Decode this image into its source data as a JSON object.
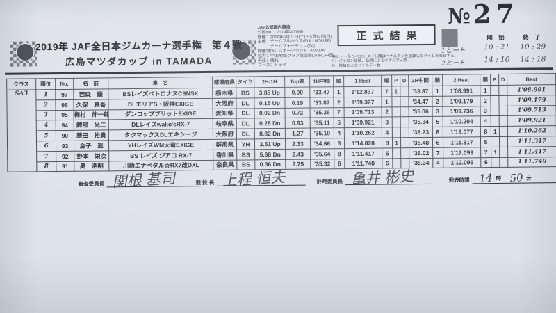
{
  "doc_no": {
    "prefix": "№",
    "number": "27"
  },
  "header": {
    "title_line1": "2019年 JAF全日本ジムカーナ選手権　第４戦",
    "title_line2": "広島マツダカップ in TAMADA"
  },
  "sanction_lines": [
    "JAF公認国内競技",
    "公認No.：2019年4009号",
    "開催：2019年5月11日(土)・5月12日(日)",
    "主催：チームフルハウス(FULLHOUSE)",
    "　　　チームフォーチュン(T4)",
    "開催場所：スポーツランドTAMADA",
    "協力：中国地域クラブ協議会(JMRC中国)",
    "天候：晴れ",
    "コース：ドライ"
  ],
  "result_stamp": "正式結果",
  "notes": [
    "各ヒート及びベストタイム欄はペナルティを加算したタイムを表記する。",
    "P：パイロン接触、転倒によるペナルティ数",
    "D：脱輪によるペナルティ数"
  ],
  "schedule": {
    "start_label": "開 始",
    "end_label": "終 了",
    "rows": [
      {
        "label": "1ヒート",
        "start": "10 : 21",
        "end": "10 : 29"
      },
      {
        "label": "2ヒート",
        "start": "14 : 10",
        "end": "14 : 18"
      }
    ]
  },
  "table": {
    "class_header": "クラス",
    "class_label": "SA3",
    "headers": [
      "順位",
      "No.",
      "名　前",
      "車　名",
      "都道府県",
      "タイヤ",
      "2H-1H",
      "Top差",
      "1H中間",
      "順",
      "1 Heat",
      "順",
      "P",
      "D",
      "2H中間",
      "順",
      "2 Heat",
      "順",
      "P",
      "D",
      "Best"
    ],
    "rows": [
      [
        "1",
        "97",
        "西森　顕",
        "BSレイズペトロナスCSNSX",
        "栃木県",
        "BS",
        "3.85 Up",
        "0.00",
        "'33.47",
        "1",
        "1'12.837",
        "7",
        "1",
        "",
        "'33.87",
        "1",
        "1'08.991",
        "1",
        "",
        "",
        "1'08.991"
      ],
      [
        "2",
        "96",
        "久保　真吾",
        "DLエリアS・阪神EXIGE",
        "大阪府",
        "DL",
        "0.15 Up",
        "0.19",
        "'33.87",
        "2",
        "1'09.327",
        "1",
        "",
        "",
        "'34.47",
        "2",
        "1'09.179",
        "2",
        "",
        "",
        "1'09.179"
      ],
      [
        "3",
        "95",
        "梅村　伸一郎",
        "ダンロップブリットEXIGE",
        "愛知県",
        "DL",
        "0.02 Dn",
        "0.72",
        "'35.36",
        "7",
        "1'09.713",
        "2",
        "",
        "",
        "'35.06",
        "3",
        "1'09.736",
        "3",
        "",
        "",
        "1'09.713"
      ],
      [
        "4",
        "94",
        "鰐部　光二",
        "DLレイズwako'sRX-7",
        "岐阜県",
        "DL",
        "0.28 Dn",
        "0.93",
        "'35.11",
        "5",
        "1'09.921",
        "3",
        "",
        "",
        "'35.34",
        "5",
        "1'10.204",
        "4",
        "",
        "",
        "1'09.921"
      ],
      [
        "5",
        "90",
        "勝田　裕貴",
        "タクマックスDLエキシージ",
        "大阪府",
        "DL",
        "8.82 Dn",
        "1.27",
        "'35.10",
        "4",
        "1'10.262",
        "4",
        "",
        "",
        "'38.23",
        "8",
        "1'19.077",
        "8",
        "1",
        "",
        "1'10.262"
      ],
      [
        "6",
        "93",
        "金子　進",
        "YHレイズWM天竜EXIGE",
        "群馬県",
        "YH",
        "3.51 Up",
        "2.33",
        "'34.66",
        "3",
        "1'14.828",
        "8",
        "1",
        "",
        "'35.48",
        "6",
        "1'11.317",
        "5",
        "",
        "",
        "1'11.317"
      ],
      [
        "7",
        "92",
        "野本　栄次",
        "BS レイズ ジアロ RX-7",
        "香川県",
        "BS",
        "5.68 Dn",
        "2.43",
        "'35.64",
        "8",
        "1'11.417",
        "5",
        "",
        "",
        "'36.02",
        "7",
        "1'17.093",
        "7",
        "1",
        "",
        "1'11.417"
      ],
      [
        "8",
        "91",
        "奥　浩明",
        "川崎エナペタル☆RX7改DXL",
        "奈良県",
        "BS",
        "0.36 Dn",
        "2.75",
        "'35.32",
        "6",
        "1'11.740",
        "6",
        "",
        "",
        "'35.34",
        "4",
        "1'12.096",
        "6",
        "",
        "",
        "1'11.740"
      ]
    ]
  },
  "footer": {
    "officials": [
      {
        "label": "審査委員長",
        "name": "関根 基司"
      },
      {
        "label": "競 技 長",
        "name": "上程 恒夫"
      },
      {
        "label": "計時委員長",
        "name": "亀井 彬史"
      }
    ],
    "announce": {
      "label": "発表時間",
      "hour": "14",
      "hour_unit": "時",
      "minute": "50",
      "minute_unit": "分"
    }
  }
}
